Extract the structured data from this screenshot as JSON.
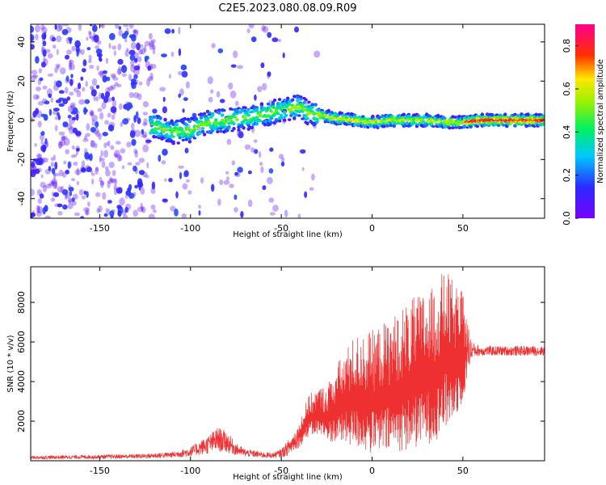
{
  "title": "C2E5.2023.080.08.09.R09",
  "chart_data": [
    {
      "type": "heatmap",
      "xlabel": "Height of straight line (km)",
      "ylabel": "Frequency (Hz)",
      "xlim": [
        -188,
        95
      ],
      "ylim": [
        -50,
        49
      ],
      "xticks": [
        -150,
        -100,
        -50,
        0,
        50
      ],
      "yticks": [
        -40,
        -20,
        0,
        20,
        40
      ],
      "colorbar": {
        "label": "Normalized spectral amplitude",
        "range": [
          0.0,
          0.9
        ],
        "ticks": [
          0.0,
          0.2,
          0.4,
          0.6,
          0.8
        ],
        "colormap": "rainbow (purple-blue-cyan-green-yellow-red-magenta)"
      },
      "ridge": {
        "x": [
          -120,
          -110,
          -100,
          -90,
          -80,
          -70,
          -60,
          -50,
          -40,
          -35,
          -30,
          -20,
          -10,
          0,
          10,
          20,
          30,
          40,
          50,
          60,
          70,
          80,
          95
        ],
        "y": [
          -3,
          -6,
          -5,
          -1,
          0,
          1,
          3,
          5,
          7,
          4,
          3,
          1,
          0,
          -1,
          0,
          0,
          0,
          -1,
          -1,
          0,
          0,
          0,
          0
        ]
      },
      "grid": false
    },
    {
      "type": "line",
      "xlabel": "Height of straight line (km)",
      "ylabel": "SNR (10 * v/v)",
      "xlim": [
        -188,
        95
      ],
      "ylim": [
        0,
        9800
      ],
      "xticks": [
        -150,
        -100,
        -50,
        0,
        50
      ],
      "yticks": [
        2000,
        4000,
        6000,
        8000
      ],
      "series": [
        {
          "color": "#ee3030",
          "envelope": {
            "x": [
              -188,
              -150,
              -125,
              -110,
              -100,
              -90,
              -85,
              -80,
              -75,
              -70,
              -60,
              -55,
              -50,
              -45,
              -40,
              -35,
              -30,
              -25,
              -20,
              -10,
              0,
              10,
              20,
              30,
              35,
              40,
              45,
              50,
              55,
              60,
              70,
              80,
              95
            ],
            "min": [
              80,
              100,
              120,
              150,
              200,
              350,
              450,
              400,
              280,
              200,
              140,
              140,
              160,
              300,
              700,
              1200,
              1300,
              1000,
              900,
              700,
              300,
              400,
              500,
              800,
              1000,
              1500,
              2000,
              3000,
              5200,
              5300,
              5300,
              5300,
              5300
            ],
            "max": [
              250,
              300,
              350,
              450,
              700,
              1300,
              1700,
              1500,
              900,
              600,
              450,
              400,
              600,
              1200,
              2000,
              3300,
              3700,
              3800,
              4800,
              6300,
              6600,
              7200,
              8100,
              8600,
              8800,
              9800,
              9000,
              8500,
              6000,
              5800,
              5800,
              5800,
              5800
            ]
          }
        }
      ],
      "grid": false
    }
  ]
}
